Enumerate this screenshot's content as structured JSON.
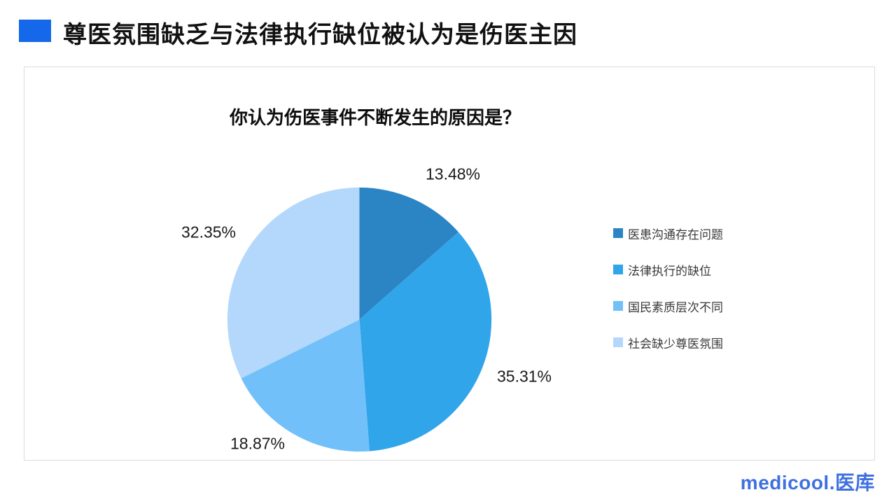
{
  "page": {
    "title": "尊医氛围缺乏与法律执行缺位被认为是伤医主因"
  },
  "theme": {
    "accent_color": "#1468e9",
    "logo_color": "#3f70e1",
    "panel_border_color": "#dcdcdc"
  },
  "chart_data": {
    "type": "pie",
    "title": "你认为伤医事件不断发生的原因是？",
    "categories": [
      "医患沟通存在问题",
      "法律执行的缺位",
      "国民素质层次不同",
      "社会缺少尊医氛围"
    ],
    "values": [
      13.48,
      35.31,
      18.87,
      32.35
    ],
    "labels": [
      "13.48%",
      "35.31%",
      "18.87%",
      "32.35%"
    ],
    "colors": [
      "#2b85c4",
      "#31a5e9",
      "#72c0f9",
      "#b4d8fb"
    ],
    "start_angle_deg": 0,
    "direction": "clockwise",
    "legend_position": "right"
  },
  "footer": {
    "logo_text": "medicool.医库"
  }
}
